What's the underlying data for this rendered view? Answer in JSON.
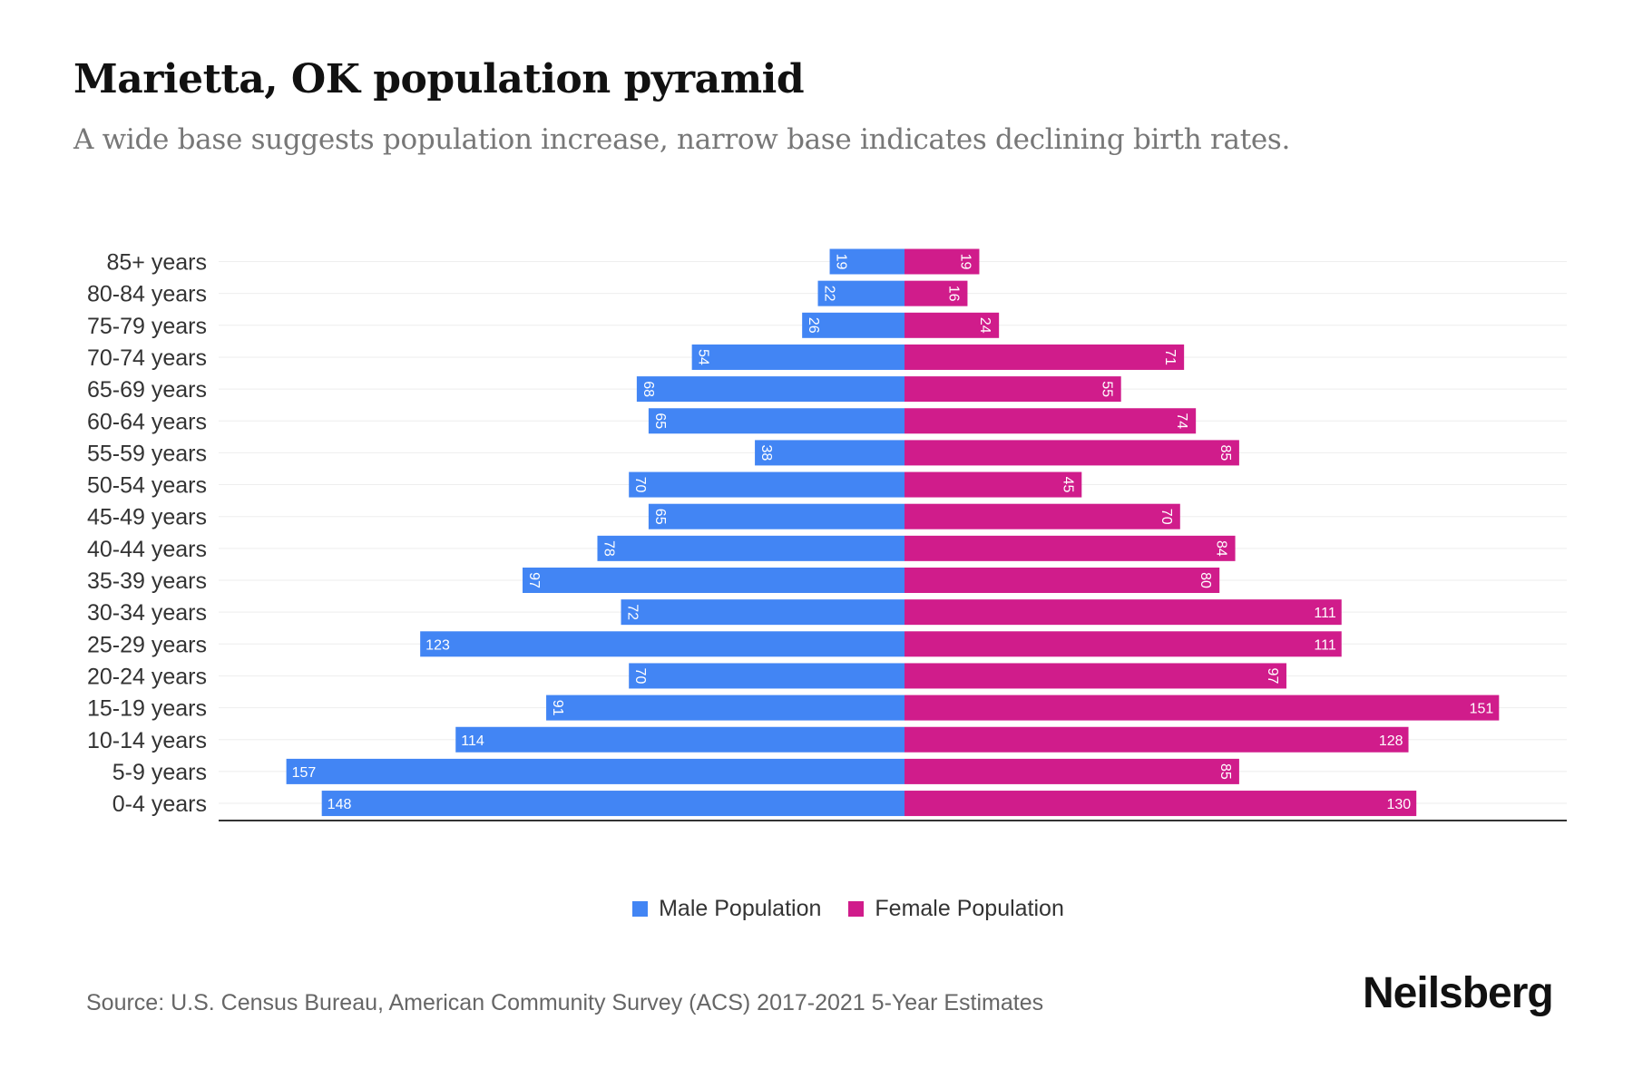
{
  "title": "Marietta, OK population pyramid",
  "subtitle": "A wide base suggests population increase, narrow base indicates declining birth rates.",
  "source": "Source: U.S. Census Bureau, American Community Survey (ACS) 2017-2021 5-Year Estimates",
  "logo": "Neilsberg",
  "colors": {
    "male": "#4285f4",
    "female": "#d01c8b"
  },
  "chart_data": {
    "type": "bar",
    "orientation": "horizontal-pyramid",
    "title": "Marietta, OK population pyramid",
    "categories": [
      "85+ years",
      "80-84 years",
      "75-79 years",
      "70-74 years",
      "65-69 years",
      "60-64 years",
      "55-59 years",
      "50-54 years",
      "45-49 years",
      "40-44 years",
      "35-39 years",
      "30-34 years",
      "25-29 years",
      "20-24 years",
      "15-19 years",
      "10-14 years",
      "5-9 years",
      "0-4 years"
    ],
    "series": [
      {
        "name": "Male Population",
        "values": [
          19,
          22,
          26,
          54,
          68,
          65,
          38,
          70,
          65,
          78,
          97,
          72,
          123,
          70,
          91,
          114,
          157,
          148
        ]
      },
      {
        "name": "Female Population",
        "values": [
          19,
          16,
          24,
          71,
          55,
          74,
          85,
          45,
          70,
          84,
          80,
          111,
          111,
          97,
          151,
          128,
          85,
          130
        ]
      }
    ],
    "xlim": [
      -171,
      171
    ],
    "legend": "bottom-center",
    "grid": true
  }
}
